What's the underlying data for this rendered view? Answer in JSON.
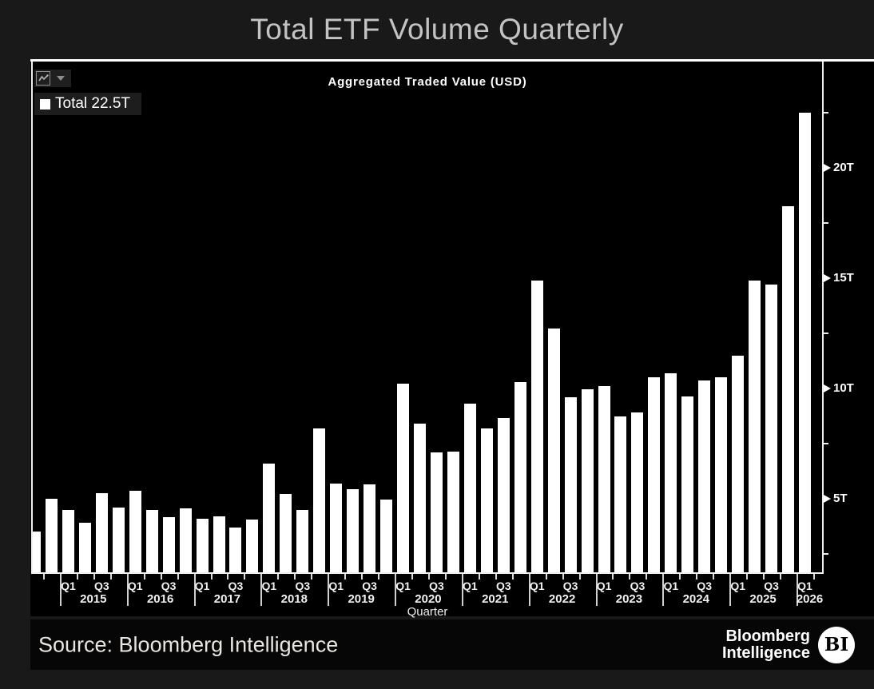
{
  "page": {
    "title": "Total ETF Volume Quarterly"
  },
  "toolbar": {
    "chart_type_icon": "line-chart-icon",
    "dropdown_icon": "caret-down-icon"
  },
  "legend": {
    "swatch_color": "#ffffff",
    "label": "Total 22.5T"
  },
  "footer": {
    "source_text": "Source: Bloomberg Intelligence",
    "brand_line1": "Bloomberg",
    "brand_line2": "Intelligence",
    "badge_text": "BI"
  },
  "chart_data": {
    "type": "bar",
    "title": "Aggregated Traded Value (USD)",
    "xlabel": "Quarter",
    "unit": "trillion USD",
    "bar_color": "#ffffff",
    "background": "#000000",
    "legend_position": "top-left",
    "grid": false,
    "x": [
      "Q3 2014",
      "Q4 2014",
      "Q1 2015",
      "Q2 2015",
      "Q3 2015",
      "Q4 2015",
      "Q1 2016",
      "Q2 2016",
      "Q3 2016",
      "Q4 2016",
      "Q1 2017",
      "Q2 2017",
      "Q3 2017",
      "Q4 2017",
      "Q1 2018",
      "Q2 2018",
      "Q3 2018",
      "Q4 2018",
      "Q1 2019",
      "Q2 2019",
      "Q3 2019",
      "Q4 2019",
      "Q1 2020",
      "Q2 2020",
      "Q3 2020",
      "Q4 2020",
      "Q1 2021",
      "Q2 2021",
      "Q3 2021",
      "Q4 2021",
      "Q1 2022",
      "Q2 2022",
      "Q3 2022",
      "Q4 2022",
      "Q1 2023",
      "Q2 2023",
      "Q3 2023",
      "Q4 2023",
      "Q1 2024",
      "Q2 2024",
      "Q3 2024",
      "Q4 2024",
      "Q1 2025",
      "Q2 2025",
      "Q3 2025",
      "Q4 2025",
      "Q1 2026"
    ],
    "values": [
      3.5,
      5.0,
      4.5,
      3.9,
      5.25,
      4.6,
      5.35,
      4.5,
      4.15,
      4.55,
      4.1,
      4.2,
      3.7,
      4.05,
      6.6,
      5.2,
      4.5,
      8.2,
      5.7,
      5.45,
      5.65,
      4.95,
      10.2,
      8.4,
      7.1,
      7.15,
      9.3,
      8.2,
      8.65,
      10.3,
      14.9,
      12.7,
      9.6,
      9.95,
      10.1,
      8.75,
      8.9,
      10.5,
      10.7,
      9.65,
      10.35,
      10.5,
      11.5,
      14.9,
      14.7,
      18.25,
      22.5
    ],
    "y_axis": {
      "side": "right",
      "ylim": [
        1.65,
        24.6
      ],
      "major_ticks": [
        5,
        10,
        15,
        20
      ],
      "major_tick_labels": [
        "5T",
        "10T",
        "15T",
        "20T"
      ],
      "minor_ticks": [
        2.5,
        7.5,
        12.5,
        17.5,
        22.5
      ]
    },
    "x_axis": {
      "years": [
        {
          "year": "2015",
          "quarter_labels": [
            "Q1",
            "Q3"
          ]
        },
        {
          "year": "2016",
          "quarter_labels": [
            "Q1",
            "Q3"
          ]
        },
        {
          "year": "2017",
          "quarter_labels": [
            "Q1",
            "Q3"
          ]
        },
        {
          "year": "2018",
          "quarter_labels": [
            "Q1",
            "Q3"
          ]
        },
        {
          "year": "2019",
          "quarter_labels": [
            "Q1",
            "Q3"
          ]
        },
        {
          "year": "2020",
          "quarter_labels": [
            "Q1",
            "Q3"
          ]
        },
        {
          "year": "2021",
          "quarter_labels": [
            "Q1",
            "Q3"
          ]
        },
        {
          "year": "2022",
          "quarter_labels": [
            "Q1",
            "Q3"
          ]
        },
        {
          "year": "2023",
          "quarter_labels": [
            "Q1",
            "Q3"
          ]
        },
        {
          "year": "2024",
          "quarter_labels": [
            "Q1",
            "Q3"
          ]
        },
        {
          "year": "2025",
          "quarter_labels": [
            "Q1",
            "Q3"
          ]
        },
        {
          "year": "2026",
          "quarter_labels": [
            "Q1"
          ]
        }
      ]
    }
  }
}
